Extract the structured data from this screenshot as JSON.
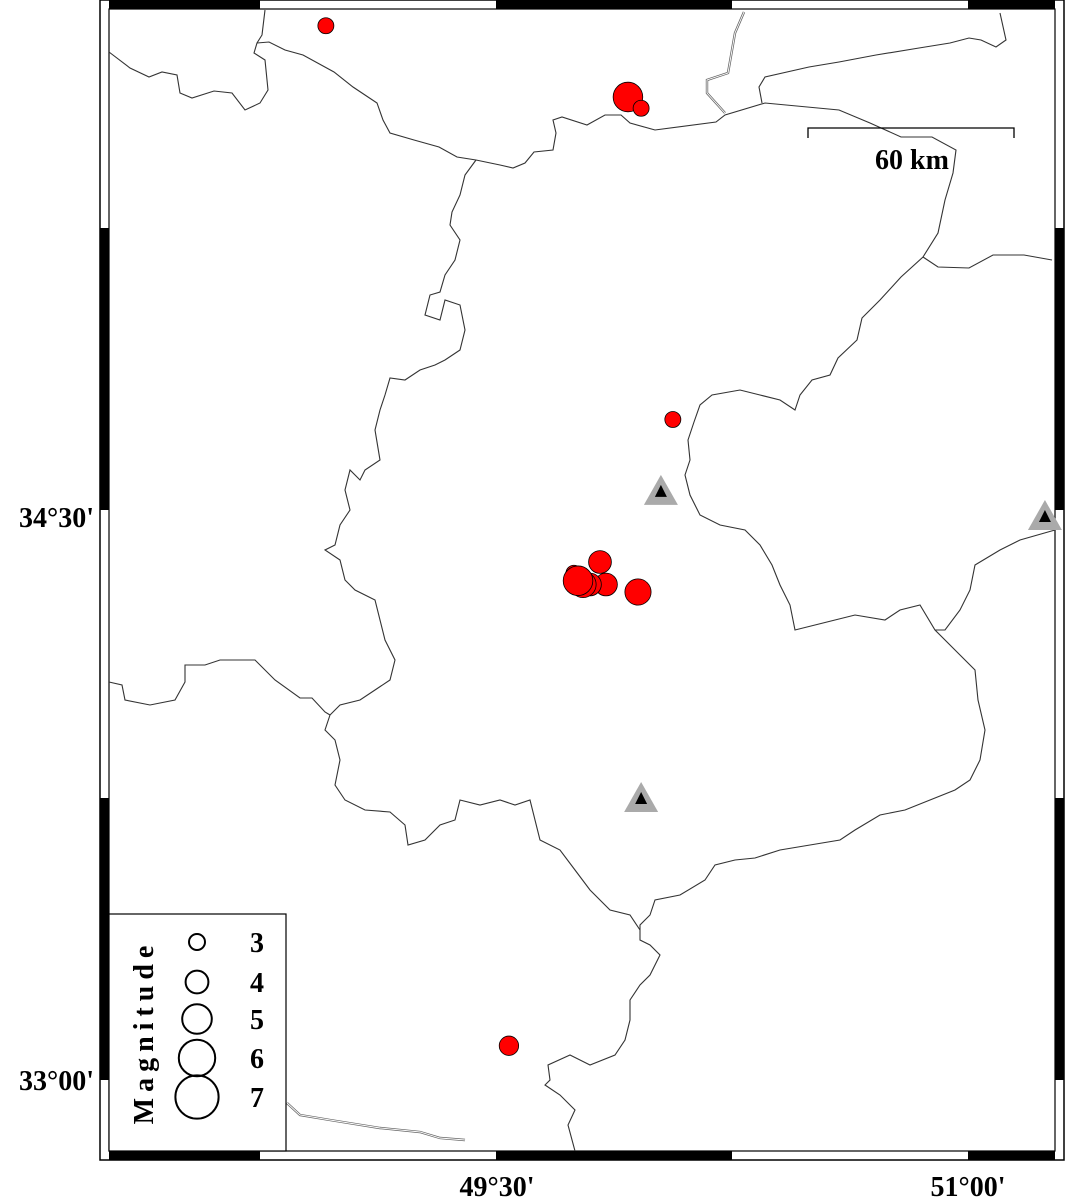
{
  "map": {
    "projection_extent": {
      "lon": [
        48.5,
        51.5
      ],
      "lat": [
        32.8,
        35.8
      ]
    },
    "frame_ticks": {
      "lon_labels": [
        "49°30'",
        "51°00'"
      ],
      "lat_labels": [
        "34°30'",
        "33°00'"
      ]
    },
    "scale_bar": {
      "label": "60 km"
    },
    "colors": {
      "event": "#ff0000",
      "station_outer": "#aaaaaa",
      "station_inner": "#000000",
      "border": "#333333"
    },
    "events": [
      {
        "lon": 48.955,
        "lat": 35.81,
        "mag": 3
      },
      {
        "lon": 49.917,
        "lat": 35.62,
        "mag": 5
      },
      {
        "lon": 49.959,
        "lat": 35.59,
        "mag": 3
      },
      {
        "lon": 50.06,
        "lat": 34.76,
        "mag": 3
      },
      {
        "lon": 49.745,
        "lat": 34.35,
        "mag": 3
      },
      {
        "lon": 49.828,
        "lat": 34.38,
        "mag": 4
      },
      {
        "lon": 49.847,
        "lat": 34.32,
        "mag": 4
      },
      {
        "lon": 49.796,
        "lat": 34.32,
        "mag": 4
      },
      {
        "lon": 49.774,
        "lat": 34.32,
        "mag": 4.5
      },
      {
        "lon": 49.758,
        "lat": 34.33,
        "mag": 5
      },
      {
        "lon": 49.949,
        "lat": 34.3,
        "mag": 4.5
      },
      {
        "lon": 49.538,
        "lat": 33.09,
        "mag": 3.5
      }
    ],
    "stations": [
      {
        "lon": 50.022,
        "lat": 34.567
      },
      {
        "lon": 49.959,
        "lat": 33.748
      },
      {
        "lon": 51.245,
        "lat": 34.5
      }
    ],
    "legend": {
      "title": "Magnitude",
      "items": [
        {
          "mag": 3,
          "label": "3"
        },
        {
          "mag": 4,
          "label": "4"
        },
        {
          "mag": 5,
          "label": "5"
        },
        {
          "mag": 6,
          "label": "6"
        },
        {
          "mag": 7,
          "label": "7"
        }
      ]
    }
  }
}
